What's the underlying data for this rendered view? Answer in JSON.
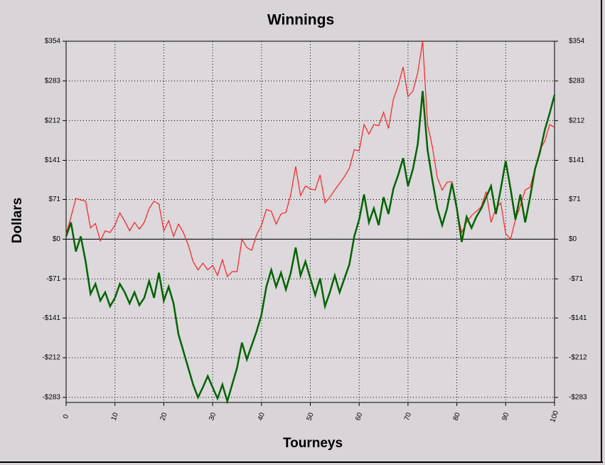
{
  "chart_data": {
    "type": "line",
    "title": "Winnings",
    "xlabel": "Tourneys",
    "ylabel": "Dollars",
    "x": [
      0,
      1,
      2,
      3,
      4,
      5,
      6,
      7,
      8,
      9,
      10,
      11,
      12,
      13,
      14,
      15,
      16,
      17,
      18,
      19,
      20,
      21,
      22,
      23,
      24,
      25,
      26,
      27,
      28,
      29,
      30,
      31,
      32,
      33,
      34,
      35,
      36,
      37,
      38,
      39,
      40,
      41,
      42,
      43,
      44,
      45,
      46,
      47,
      48,
      49,
      50,
      51,
      52,
      53,
      54,
      55,
      56,
      57,
      58,
      59,
      60,
      61,
      62,
      63,
      64,
      65,
      66,
      67,
      68,
      69,
      70,
      71,
      72,
      73,
      74,
      75,
      76,
      77,
      78,
      79,
      80,
      81,
      82,
      83,
      84,
      85,
      86,
      87,
      88,
      89,
      90,
      91,
      92,
      93,
      94,
      95,
      96,
      97,
      98,
      99,
      100
    ],
    "series": [
      {
        "color": "#ff2020",
        "values": [
          10,
          40,
          73,
          70,
          68,
          20,
          28,
          -3,
          15,
          12,
          25,
          47,
          32,
          15,
          30,
          18,
          30,
          55,
          68,
          63,
          15,
          33,
          5,
          27,
          12,
          -10,
          -40,
          -55,
          -43,
          -55,
          -47,
          -65,
          -37,
          -67,
          -58,
          -58,
          0,
          -15,
          -20,
          8,
          25,
          53,
          50,
          27,
          45,
          48,
          80,
          130,
          78,
          95,
          90,
          88,
          115,
          65,
          75,
          88,
          100,
          112,
          127,
          160,
          158,
          205,
          188,
          205,
          203,
          227,
          198,
          250,
          275,
          308,
          255,
          265,
          298,
          354,
          205,
          165,
          110,
          88,
          102,
          103,
          50,
          12,
          30,
          42,
          50,
          58,
          85,
          30,
          55,
          65,
          10,
          0,
          35,
          60,
          88,
          93,
          125,
          160,
          175,
          205,
          200
        ]
      },
      {
        "color": "#006400",
        "values": [
          5,
          30,
          -22,
          5,
          -40,
          -98,
          -80,
          -110,
          -95,
          -120,
          -105,
          -80,
          -95,
          -115,
          -95,
          -118,
          -105,
          -75,
          -105,
          -60,
          -110,
          -85,
          -115,
          -170,
          -200,
          -230,
          -260,
          -283,
          -265,
          -245,
          -265,
          -285,
          -260,
          -290,
          -260,
          -230,
          -185,
          -215,
          -190,
          -165,
          -135,
          -85,
          -55,
          -85,
          -60,
          -90,
          -60,
          -15,
          -65,
          -40,
          -70,
          -100,
          -70,
          -120,
          -95,
          -65,
          -95,
          -70,
          -45,
          5,
          35,
          80,
          30,
          55,
          25,
          75,
          45,
          90,
          115,
          145,
          95,
          125,
          170,
          265,
          160,
          105,
          55,
          25,
          55,
          100,
          55,
          -5,
          40,
          20,
          40,
          55,
          75,
          95,
          45,
          90,
          140,
          90,
          35,
          80,
          30,
          75,
          125,
          155,
          195,
          225,
          258
        ]
      }
    ],
    "xlim": [
      0,
      100
    ],
    "xticks": [
      0,
      10,
      20,
      30,
      40,
      50,
      60,
      70,
      80,
      90,
      100
    ],
    "ylim": [
      -292,
      354
    ],
    "yticks": [
      {
        "value": 354,
        "label": "$354"
      },
      {
        "value": 283,
        "label": "$283"
      },
      {
        "value": 212,
        "label": "$212"
      },
      {
        "value": 141,
        "label": "$141"
      },
      {
        "value": 71,
        "label": "$71"
      },
      {
        "value": 0,
        "label": "$0"
      },
      {
        "value": -71,
        "label": "-$71"
      },
      {
        "value": -141,
        "label": "-$141"
      },
      {
        "value": -212,
        "label": "-$212"
      },
      {
        "value": -283,
        "label": "-$283"
      }
    ],
    "grid": true,
    "plot_background": "#dcd8dc"
  }
}
